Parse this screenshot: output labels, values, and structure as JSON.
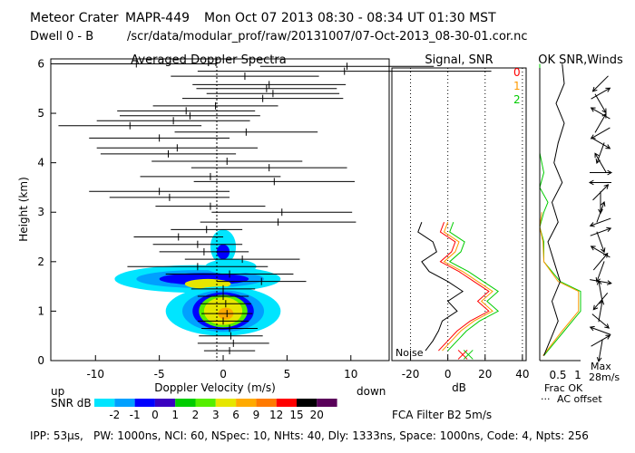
{
  "header": {
    "site": "Meteor Crater",
    "instrument": "MAPR-449",
    "datetime": "Mon Oct 07 2013 08:30 - 08:34 UT 01:30 MST",
    "dwell": "Dwell  0 -  B",
    "file_path": "/scr/data/modular_prof/raw/20131007/07-Oct-2013_08-30-01.cor.nc"
  },
  "chart_data": [
    {
      "type": "heatmap",
      "title": "Averaged Doppler Spectra",
      "xlabel": "Doppler Velocity (m/s)",
      "ylabel": "Height (km)",
      "xlim": [
        -13.5,
        13
      ],
      "ylim": [
        0,
        6.1
      ],
      "x_ticks": [
        -10,
        -5,
        0,
        5,
        10
      ],
      "y_ticks": [
        0,
        1,
        2,
        3,
        4,
        5,
        6
      ],
      "direction_labels": {
        "left": "up",
        "right": "down"
      },
      "colorbar": {
        "title": "SNR dB",
        "labels": [
          "-2",
          "-1",
          "0",
          "1",
          "2",
          "3",
          "6",
          "9",
          "12",
          "15",
          "20"
        ],
        "colors": [
          "#00e5ff",
          "#00a0ff",
          "#0000ff",
          "#3a00c0",
          "#00cc00",
          "#55ee00",
          "#e6e600",
          "#ffaa00",
          "#ff7a00",
          "#ff0000",
          "#000000",
          "#5a005a"
        ]
      },
      "spectra": [
        {
          "h": 6.0,
          "c": -6.8,
          "w": 6.3
        },
        {
          "h": 5.95,
          "c": 9.7,
          "w": 6.8
        },
        {
          "h": 5.85,
          "c": 9.5,
          "w": 11.5
        },
        {
          "h": 5.75,
          "c": 1.7,
          "w": 5.8
        },
        {
          "h": 5.58,
          "c": 3.6,
          "w": 6.0
        },
        {
          "h": 5.5,
          "c": 3.4,
          "w": 5.5
        },
        {
          "h": 5.4,
          "c": 3.9,
          "w": 5.2
        },
        {
          "h": 5.3,
          "c": 3.1,
          "w": 6.3
        },
        {
          "h": 5.15,
          "c": -0.6,
          "w": 4.9
        },
        {
          "h": 5.05,
          "c": -2.9,
          "w": 5.4
        },
        {
          "h": 4.95,
          "c": -2.6,
          "w": 5.5
        },
        {
          "h": 4.85,
          "c": -3.9,
          "w": 6.0
        },
        {
          "h": 4.75,
          "c": -7.3,
          "w": 5.6
        },
        {
          "h": 4.62,
          "c": 1.8,
          "w": 5.6
        },
        {
          "h": 4.5,
          "c": -5.0,
          "w": 5.5
        },
        {
          "h": 4.3,
          "c": -3.6,
          "w": 6.3
        },
        {
          "h": 4.18,
          "c": -4.3,
          "w": 5.3
        },
        {
          "h": 4.03,
          "c": 0.3,
          "w": 5.9
        },
        {
          "h": 3.9,
          "c": 3.6,
          "w": 6.1
        },
        {
          "h": 3.72,
          "c": -1.0,
          "w": 5.5
        },
        {
          "h": 3.62,
          "c": 4.0,
          "w": 6.3
        },
        {
          "h": 3.42,
          "c": -5.0,
          "w": 5.5
        },
        {
          "h": 3.3,
          "c": -4.2,
          "w": 4.7
        },
        {
          "h": 3.12,
          "c": -1.0,
          "w": 4.3
        },
        {
          "h": 3.0,
          "c": 4.6,
          "w": 5.5
        },
        {
          "h": 2.8,
          "c": 4.3,
          "w": 6.1
        },
        {
          "h": 2.65,
          "c": -1.3,
          "w": 2.8
        },
        {
          "h": 2.5,
          "c": -3.5,
          "w": 3.5
        },
        {
          "h": 2.35,
          "c": -2.0,
          "w": 3.5
        },
        {
          "h": 2.2,
          "c": -1.5,
          "w": 3.5
        },
        {
          "h": 2.05,
          "c": 1.5,
          "w": 4.5
        },
        {
          "h": 1.9,
          "c": -2.0,
          "w": 5.5
        },
        {
          "h": 1.75,
          "c": 0.5,
          "w": 5.0
        },
        {
          "h": 1.6,
          "c": 3.0,
          "w": 3.5
        },
        {
          "h": 1.45,
          "c": 0.0,
          "w": 2.5
        },
        {
          "h": 1.3,
          "c": 0.0,
          "w": 2.0
        },
        {
          "h": 1.15,
          "c": 0.2,
          "w": 2.0
        },
        {
          "h": 0.95,
          "c": 0.3,
          "w": 2.0
        },
        {
          "h": 0.8,
          "c": 0.0,
          "w": 2.0
        },
        {
          "h": 0.65,
          "c": 0.5,
          "w": 2.2
        },
        {
          "h": 0.5,
          "c": 0.6,
          "w": 2.5
        },
        {
          "h": 0.35,
          "c": 0.8,
          "w": 2.8
        },
        {
          "h": 0.2,
          "c": 0.5,
          "w": 2.0
        }
      ],
      "bands": [
        {
          "hc": 1.65,
          "half_h": 0.28,
          "vc": -2.0,
          "half_w": 6.5,
          "color": "#00e5ff"
        },
        {
          "hc": 1.65,
          "half_h": 0.18,
          "vc": -1.8,
          "half_w": 5.0,
          "color": "#00a0ff"
        },
        {
          "hc": 1.65,
          "half_h": 0.12,
          "vc": -1.5,
          "half_w": 3.5,
          "color": "#0000ff"
        },
        {
          "hc": 1.55,
          "half_h": 0.1,
          "vc": -1.2,
          "half_w": 1.8,
          "color": "#e6e600"
        },
        {
          "hc": 1.9,
          "half_h": 0.15,
          "vc": 0.6,
          "half_w": 2.0,
          "color": "#00e5ff"
        },
        {
          "hc": 1.0,
          "half_h": 0.5,
          "vc": 0.0,
          "half_w": 4.5,
          "color": "#00e5ff"
        },
        {
          "hc": 1.0,
          "half_h": 0.42,
          "vc": 0.0,
          "half_w": 3.2,
          "color": "#00a0ff"
        },
        {
          "hc": 1.0,
          "half_h": 0.38,
          "vc": 0.0,
          "half_w": 2.4,
          "color": "#0000ff"
        },
        {
          "hc": 1.0,
          "half_h": 0.33,
          "vc": 0.0,
          "half_w": 1.9,
          "color": "#55ee00"
        },
        {
          "hc": 1.0,
          "half_h": 0.28,
          "vc": 0.0,
          "half_w": 1.5,
          "color": "#e6e600"
        },
        {
          "hc": 0.95,
          "half_h": 0.12,
          "vc": 0.2,
          "half_w": 0.6,
          "color": "#ffaa00"
        },
        {
          "hc": 2.3,
          "half_h": 0.35,
          "vc": 0.0,
          "half_w": 1.0,
          "color": "#00e5ff"
        },
        {
          "hc": 2.2,
          "half_h": 0.15,
          "vc": 0.0,
          "half_w": 0.5,
          "color": "#0000ff"
        }
      ]
    },
    {
      "type": "line",
      "title": "Signal, SNR",
      "xlabel": "dB",
      "xlim": [
        -30,
        42
      ],
      "ylim": [
        0,
        6.1
      ],
      "x_ticks": [
        -20,
        0,
        20,
        40
      ],
      "noise_label": "Noise",
      "series_labels": [
        "0",
        "1",
        "2"
      ],
      "series": [
        {
          "name": "signal",
          "color": "#000000",
          "h": [
            0.2,
            0.4,
            0.6,
            0.8,
            1.0,
            1.2,
            1.4,
            1.6,
            1.8,
            2.0,
            2.2,
            2.4,
            2.6,
            2.8
          ],
          "v": [
            -12,
            -8,
            -5,
            -3,
            5,
            0,
            8,
            0,
            -10,
            -14,
            -6,
            -8,
            -16,
            -14
          ]
        },
        {
          "name": "0",
          "color": "#ff0000",
          "h": [
            0.2,
            0.4,
            0.6,
            0.8,
            1.0,
            1.2,
            1.4,
            1.6,
            1.8,
            2.0,
            2.2,
            2.4,
            2.6,
            2.8
          ],
          "v": [
            -5,
            0,
            5,
            12,
            22,
            16,
            22,
            14,
            6,
            -4,
            2,
            4,
            -4,
            -2
          ]
        },
        {
          "name": "1",
          "color": "#ff9900",
          "h": [
            0.2,
            0.4,
            0.6,
            0.8,
            1.0,
            1.2,
            1.4,
            1.6,
            1.8,
            2.0,
            2.2,
            2.4,
            2.6,
            2.8
          ],
          "v": [
            -3,
            2,
            7,
            14,
            24,
            18,
            24,
            16,
            8,
            -2,
            4,
            6,
            -2,
            0
          ]
        },
        {
          "name": "2",
          "color": "#00cc00",
          "h": [
            0.2,
            0.4,
            0.6,
            0.8,
            1.0,
            1.2,
            1.4,
            1.6,
            1.8,
            2.0,
            2.2,
            2.4,
            2.6,
            2.8
          ],
          "v": [
            0,
            5,
            10,
            17,
            27,
            21,
            27,
            19,
            11,
            1,
            7,
            9,
            1,
            3
          ]
        }
      ],
      "noise_markers": [
        {
          "h": 0.12,
          "v": 8,
          "color": "#ff0000"
        },
        {
          "h": 0.12,
          "v": 11,
          "color": "#00cc00"
        }
      ]
    },
    {
      "type": "line",
      "title": "OK SNR,Winds",
      "xlabel": "Frac OK",
      "xlabel2": "AC offset",
      "x_ticks": [
        "0.5",
        "1"
      ],
      "wind_scale_label": "Max",
      "wind_scale_value": "28m/s",
      "frac_ok": [
        {
          "color": "#00cc00",
          "h": [
            0.1,
            0.6,
            1.0,
            1.4,
            1.6,
            2.0,
            2.4,
            2.7,
            3.0,
            3.2,
            3.5,
            3.8,
            4.2,
            5.0,
            6.0
          ],
          "v": [
            0.1,
            0.6,
            1.0,
            1.0,
            0.5,
            0.1,
            0.1,
            0.0,
            0.1,
            0.2,
            0.0,
            0.1,
            0.0,
            0.0,
            0.0
          ]
        },
        {
          "color": "#ff9900",
          "h": [
            0.1,
            0.6,
            1.0,
            1.4,
            1.6,
            2.0,
            2.4,
            2.7,
            3.0
          ],
          "v": [
            0.08,
            0.55,
            0.95,
            0.95,
            0.45,
            0.1,
            0.08,
            0.0,
            0.05
          ]
        }
      ],
      "ac_offset": {
        "h": [
          0.1,
          0.4,
          0.8,
          1.2,
          1.6,
          2.0,
          2.4,
          2.8,
          3.2,
          3.6,
          4.0,
          4.4,
          4.8,
          5.2,
          5.6,
          6.0
        ],
        "v": [
          0.1,
          0.25,
          0.45,
          0.3,
          0.5,
          0.35,
          0.2,
          0.45,
          0.3,
          0.55,
          0.35,
          0.45,
          0.6,
          0.4,
          0.6,
          0.55
        ]
      },
      "winds": [
        {
          "h": 5.6,
          "dir": 225
        },
        {
          "h": 5.4,
          "dir": 60
        },
        {
          "h": 5.2,
          "dir": 150
        },
        {
          "h": 5.0,
          "dir": 300
        },
        {
          "h": 4.8,
          "dir": 30
        },
        {
          "h": 4.6,
          "dir": 240
        },
        {
          "h": 4.4,
          "dir": 120
        },
        {
          "h": 4.2,
          "dir": 200
        },
        {
          "h": 4.0,
          "dir": 330
        },
        {
          "h": 3.8,
          "dir": 90
        },
        {
          "h": 3.6,
          "dir": 270
        },
        {
          "h": 3.4,
          "dir": 45
        },
        {
          "h": 3.2,
          "dir": 180
        },
        {
          "h": 3.0,
          "dir": 20
        },
        {
          "h": 2.8,
          "dir": 250
        },
        {
          "h": 2.6,
          "dir": 70
        },
        {
          "h": 2.4,
          "dir": 160
        },
        {
          "h": 2.2,
          "dir": 300
        },
        {
          "h": 2.0,
          "dir": 40
        },
        {
          "h": 1.8,
          "dir": 200
        },
        {
          "h": 1.6,
          "dir": 100
        },
        {
          "h": 1.4,
          "dir": 350
        },
        {
          "h": 1.2,
          "dir": 220
        },
        {
          "h": 1.0,
          "dir": 10
        },
        {
          "h": 0.8,
          "dir": 130
        },
        {
          "h": 0.6,
          "dir": 290
        },
        {
          "h": 0.4,
          "dir": 60
        },
        {
          "h": 0.2,
          "dir": 190
        }
      ]
    }
  ],
  "fca_filter": "FCA Filter B2  5m/s",
  "footer": {
    "ipp": "IPP: 53µs,",
    "params": "PW: 1000ns,  NCI: 60,  NSpec: 10, NHts: 40,  Dly: 1333ns,  Space: 1000ns,  Code: 4,  Npts: 256"
  },
  "colors": {
    "black": "#000000",
    "red": "#ff0000",
    "orange": "#ff9900",
    "green": "#00cc00"
  }
}
